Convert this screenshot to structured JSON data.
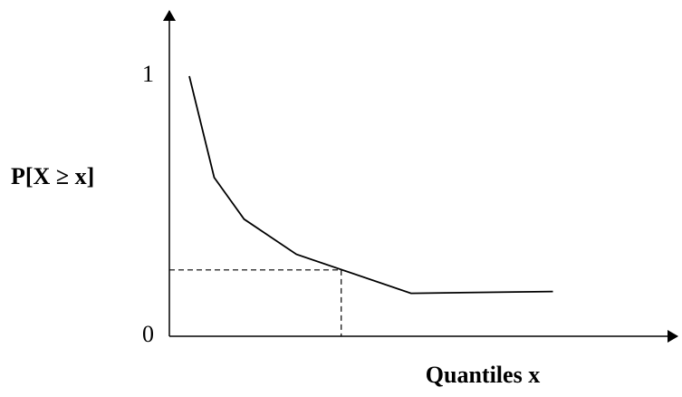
{
  "chart_data": {
    "type": "line",
    "title": "",
    "xlabel": "Quantiles x",
    "ylabel": "P[X ≥ x]",
    "y_ticks": [
      {
        "value": 0,
        "label": "0"
      },
      {
        "value": 1,
        "label": "1"
      }
    ],
    "ylim": [
      0,
      1
    ],
    "xlim": [
      0,
      10
    ],
    "grid": false,
    "legend": "none",
    "series": [
      {
        "values": [
          {
            "x": 0.4,
            "y": 1.0
          },
          {
            "x": 0.9,
            "y": 0.61
          },
          {
            "x": 1.5,
            "y": 0.45
          },
          {
            "x": 2.55,
            "y": 0.315
          },
          {
            "x": 4.85,
            "y": 0.165
          },
          {
            "x": 7.7,
            "y": 0.172
          }
        ]
      }
    ],
    "reference_point": {
      "x": 3.45,
      "y": 0.255
    },
    "colors": {
      "line": "#000000",
      "axis": "#000000",
      "reference": "#000000"
    }
  }
}
